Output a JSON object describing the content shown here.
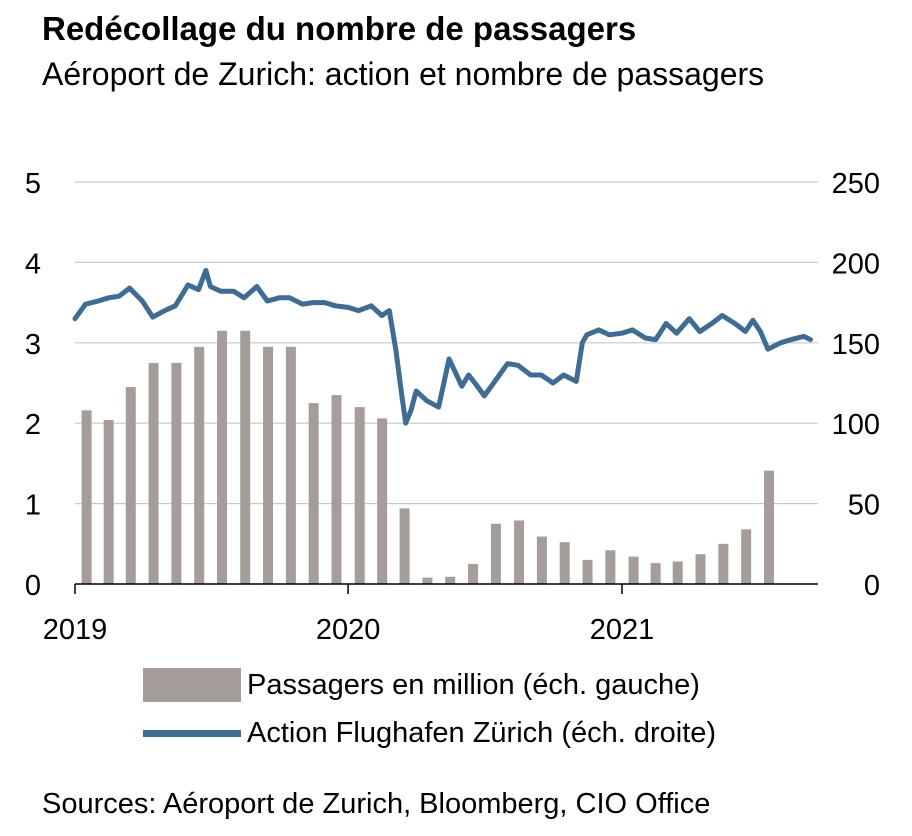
{
  "title": "Redécollage du nombre de passagers",
  "subtitle": "Aéroport de Zurich: action et nombre de passagers",
  "source": "Sources: Aéroport de Zurich, Bloomberg, CIO Office",
  "colors": {
    "bars": "#a59d99",
    "line": "#3d6c96",
    "grid": "#c8c8c8"
  },
  "chart_data": {
    "type": "bar+line",
    "legend_position": "bottom",
    "grid": "horizontal",
    "x_ticks": [
      "2019",
      "2020",
      "2021"
    ],
    "left_axis": {
      "ylim": [
        0,
        5
      ],
      "ticks": [
        "0",
        "1",
        "2",
        "3",
        "4",
        "5"
      ]
    },
    "right_axis": {
      "ylim": [
        0,
        250
      ],
      "ticks": [
        "0",
        "50",
        "100",
        "150",
        "200",
        "250"
      ]
    },
    "series": [
      {
        "name": "Passagers en million (éch. gauche)",
        "type": "bar",
        "axis": "left",
        "x": [
          "2019-01",
          "2019-02",
          "2019-03",
          "2019-04",
          "2019-05",
          "2019-06",
          "2019-07",
          "2019-08",
          "2019-09",
          "2019-10",
          "2019-11",
          "2019-12",
          "2020-01",
          "2020-02",
          "2020-03",
          "2020-04",
          "2020-05",
          "2020-06",
          "2020-07",
          "2020-08",
          "2020-09",
          "2020-10",
          "2020-11",
          "2020-12",
          "2021-01",
          "2021-02",
          "2021-03",
          "2021-04",
          "2021-05",
          "2021-06",
          "2021-07"
        ],
        "values": [
          2.16,
          2.04,
          2.45,
          2.75,
          2.75,
          2.95,
          3.15,
          3.15,
          2.95,
          2.95,
          2.25,
          2.35,
          2.2,
          2.06,
          0.94,
          0.08,
          0.09,
          0.25,
          0.75,
          0.79,
          0.59,
          0.52,
          0.3,
          0.42,
          0.34,
          0.26,
          0.28,
          0.37,
          0.5,
          0.68,
          1.41
        ]
      },
      {
        "name": "Action Flughafen Zürich (éch. droite)",
        "type": "line",
        "axis": "right",
        "x": [
          "2019-01-01",
          "2019-01-15",
          "2019-02-01",
          "2019-02-15",
          "2019-03-01",
          "2019-03-15",
          "2019-04-01",
          "2019-04-15",
          "2019-05-01",
          "2019-05-15",
          "2019-06-01",
          "2019-06-15",
          "2019-06-25",
          "2019-07-01",
          "2019-07-15",
          "2019-08-01",
          "2019-08-15",
          "2019-09-01",
          "2019-09-15",
          "2019-10-01",
          "2019-10-15",
          "2019-11-01",
          "2019-11-15",
          "2019-12-01",
          "2019-12-15",
          "2020-01-01",
          "2020-01-15",
          "2020-02-01",
          "2020-02-15",
          "2020-02-25",
          "2020-03-05",
          "2020-03-12",
          "2020-03-18",
          "2020-03-25",
          "2020-04-01",
          "2020-04-15",
          "2020-05-01",
          "2020-05-15",
          "2020-06-01",
          "2020-06-10",
          "2020-06-20",
          "2020-07-01",
          "2020-07-15",
          "2020-08-01",
          "2020-08-15",
          "2020-09-01",
          "2020-09-15",
          "2020-10-01",
          "2020-10-15",
          "2020-11-01",
          "2020-11-09",
          "2020-11-15",
          "2020-12-01",
          "2020-12-15",
          "2021-01-01",
          "2021-01-15",
          "2021-02-01",
          "2021-02-15",
          "2021-03-01",
          "2021-03-15",
          "2021-04-01",
          "2021-04-15",
          "2021-05-01",
          "2021-05-15",
          "2021-06-01",
          "2021-06-15",
          "2021-06-25",
          "2021-07-05",
          "2021-07-15",
          "2021-08-01",
          "2021-08-15",
          "2021-09-01",
          "2021-09-10"
        ],
        "values": [
          165,
          174,
          176,
          178,
          179,
          184,
          176,
          166,
          170,
          173,
          186,
          183,
          195,
          185,
          182,
          182,
          178,
          185,
          176,
          178,
          178,
          174,
          175,
          175,
          173,
          172,
          170,
          173,
          167,
          170,
          145,
          120,
          100,
          108,
          120,
          114,
          110,
          140,
          123,
          130,
          124,
          117,
          126,
          137,
          136,
          130,
          130,
          125,
          130,
          126,
          150,
          155,
          158,
          155,
          156,
          158,
          153,
          152,
          162,
          156,
          165,
          157,
          162,
          167,
          162,
          157,
          164,
          157,
          146,
          150,
          152,
          154,
          152
        ]
      }
    ]
  }
}
